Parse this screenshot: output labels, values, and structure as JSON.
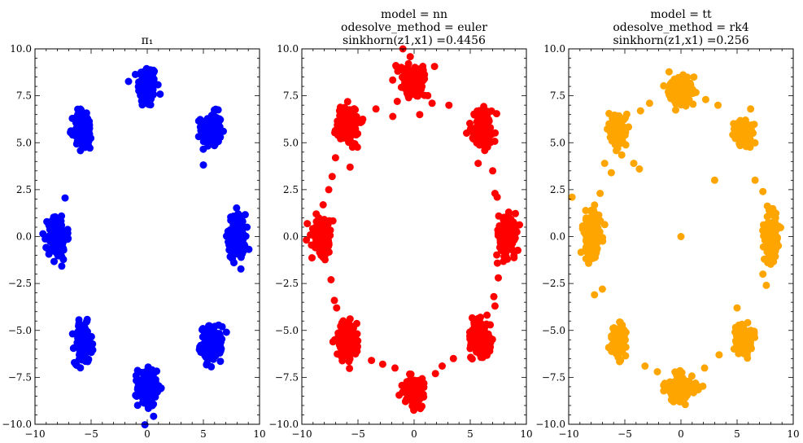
{
  "chart_data": [
    {
      "type": "scatter",
      "title_lines": [
        "π₁"
      ],
      "color": "#0000ff",
      "xlim": [
        -10,
        10
      ],
      "ylim": [
        -10,
        10
      ],
      "xticks": [
        -10,
        -5,
        0,
        5,
        10
      ],
      "yticks": [
        -10,
        -7.5,
        -5,
        -2.5,
        0,
        2.5,
        5,
        7.5,
        10
      ],
      "xtick_labels": [
        "−10",
        "−5",
        "0",
        "5",
        "10"
      ],
      "ytick_labels": [
        "−10.0",
        "−7.5",
        "−5.0",
        "−2.5",
        "0.0",
        "2.5",
        "5.0",
        "7.5",
        "10.0"
      ],
      "clusters": [
        {
          "center": [
            0,
            8
          ],
          "spread": [
            0.55,
            0.75
          ],
          "n": 140
        },
        {
          "center": [
            5.7,
            5.7
          ],
          "spread": [
            0.6,
            0.6
          ],
          "n": 140
        },
        {
          "center": [
            8,
            0
          ],
          "spread": [
            0.5,
            0.8
          ],
          "n": 140
        },
        {
          "center": [
            5.7,
            -5.7
          ],
          "spread": [
            0.6,
            0.6
          ],
          "n": 140
        },
        {
          "center": [
            0,
            -8
          ],
          "spread": [
            0.55,
            0.7
          ],
          "n": 140
        },
        {
          "center": [
            -5.7,
            -5.7
          ],
          "spread": [
            0.5,
            0.7
          ],
          "n": 140
        },
        {
          "center": [
            -8,
            0
          ],
          "spread": [
            0.55,
            0.8
          ],
          "n": 140
        },
        {
          "center": [
            -5.7,
            5.7
          ],
          "spread": [
            0.55,
            0.7
          ],
          "n": 140
        }
      ],
      "outliers": []
    },
    {
      "type": "scatter",
      "title_lines": [
        "model = nn",
        "odesolve_method = euler",
        "sinkhorn(z1,x1) =0.4456"
      ],
      "color": "#ff0000",
      "xlim": [
        -10,
        10
      ],
      "ylim": [
        -10,
        10
      ],
      "xticks": [
        -10,
        -5,
        0,
        5,
        10
      ],
      "yticks": [
        -10,
        -7.5,
        -5,
        -2.5,
        0,
        2.5,
        5,
        7.5,
        10
      ],
      "xtick_labels": [
        "−10",
        "−5",
        "0",
        "5",
        "10"
      ],
      "ytick_labels": [
        "−10.0",
        "−7.5",
        "−5.0",
        "−2.5",
        "0.0",
        "2.5",
        "5.0",
        "7.5",
        "10.0"
      ],
      "clusters": [
        {
          "center": [
            0,
            8.3
          ],
          "spread": [
            0.7,
            0.6
          ],
          "n": 140
        },
        {
          "center": [
            6.1,
            5.8
          ],
          "spread": [
            0.65,
            0.65
          ],
          "n": 140
        },
        {
          "center": [
            8.3,
            0
          ],
          "spread": [
            0.55,
            0.75
          ],
          "n": 140
        },
        {
          "center": [
            6.0,
            -5.5
          ],
          "spread": [
            0.6,
            0.6
          ],
          "n": 140
        },
        {
          "center": [
            0,
            -8.2
          ],
          "spread": [
            0.6,
            0.5
          ],
          "n": 140
        },
        {
          "center": [
            -6.0,
            -5.5
          ],
          "spread": [
            0.6,
            0.65
          ],
          "n": 140
        },
        {
          "center": [
            -8.2,
            0
          ],
          "spread": [
            0.55,
            0.75
          ],
          "n": 140
        },
        {
          "center": [
            -6.0,
            6.0
          ],
          "spread": [
            0.65,
            0.65
          ],
          "n": 140
        }
      ],
      "outliers": [
        [
          -1.5,
          7.2
        ],
        [
          1.6,
          7.1
        ],
        [
          3.1,
          7.0
        ],
        [
          -3.4,
          6.8
        ],
        [
          0.5,
          6.5
        ],
        [
          -1.9,
          6.4
        ],
        [
          7.0,
          3.5
        ],
        [
          7.2,
          2.3
        ],
        [
          7.4,
          2.1
        ],
        [
          -7.3,
          3.2
        ],
        [
          -7.6,
          2.5
        ],
        [
          -7.0,
          4.2
        ],
        [
          7.5,
          -2.2
        ],
        [
          7.1,
          -3.2
        ],
        [
          7.2,
          -3.7
        ],
        [
          -7.4,
          -2.3
        ],
        [
          -7.1,
          -3.4
        ],
        [
          -6.9,
          -3.8
        ],
        [
          -2.8,
          -6.8
        ],
        [
          2.5,
          -6.9
        ],
        [
          1.9,
          -7.3
        ],
        [
          -1.7,
          -7.0
        ],
        [
          3.5,
          -6.5
        ],
        [
          -3.8,
          -6.6
        ],
        [
          -1.0,
          10.0
        ],
        [
          5.7,
          3.9
        ],
        [
          -5.7,
          3.7
        ]
      ]
    },
    {
      "type": "scatter",
      "title_lines": [
        "model = tt",
        "odesolve_method = rk4",
        "sinkhorn(z1,x1) =0.256"
      ],
      "color": "#ffa500",
      "xlim": [
        -10,
        10
      ],
      "ylim": [
        -10,
        10
      ],
      "xticks": [
        -10,
        -5,
        0,
        5,
        10
      ],
      "yticks": [
        -10,
        -7.5,
        -5,
        -2.5,
        0,
        2.5,
        5,
        7.5,
        10
      ],
      "xtick_labels": [
        "−10",
        "−5",
        "0",
        "5",
        "10"
      ],
      "ytick_labels": [
        "−10.0",
        "−7.5",
        "−5.0",
        "−2.5",
        "0.0",
        "2.5",
        "5.0",
        "7.5",
        "10.0"
      ],
      "clusters": [
        {
          "center": [
            0,
            7.8
          ],
          "spread": [
            0.8,
            0.5
          ],
          "n": 140
        },
        {
          "center": [
            5.6,
            5.5
          ],
          "spread": [
            0.55,
            0.45
          ],
          "n": 110
        },
        {
          "center": [
            8.0,
            0
          ],
          "spread": [
            0.5,
            0.9
          ],
          "n": 140
        },
        {
          "center": [
            5.6,
            -5.5
          ],
          "spread": [
            0.5,
            0.55
          ],
          "n": 120
        },
        {
          "center": [
            0,
            -8.0
          ],
          "spread": [
            0.85,
            0.45
          ],
          "n": 140
        },
        {
          "center": [
            -5.6,
            -5.5
          ],
          "spread": [
            0.45,
            0.6
          ],
          "n": 120
        },
        {
          "center": [
            -8.0,
            0
          ],
          "spread": [
            0.5,
            0.9
          ],
          "n": 140
        },
        {
          "center": [
            -5.6,
            5.6
          ],
          "spread": [
            0.45,
            0.55
          ],
          "n": 110
        }
      ],
      "outliers": [
        [
          2.2,
          7.3
        ],
        [
          3.3,
          7.0
        ],
        [
          -2.8,
          7.1
        ],
        [
          -3.6,
          6.7
        ],
        [
          3.0,
          3.0
        ],
        [
          -3.7,
          3.6
        ],
        [
          -4.2,
          3.9
        ],
        [
          -6.2,
          3.4
        ],
        [
          6.6,
          3.0
        ],
        [
          7.3,
          2.4
        ],
        [
          -9.7,
          2.1
        ],
        [
          -7.2,
          2.3
        ],
        [
          -7.0,
          -2.8
        ],
        [
          -7.7,
          -3.1
        ],
        [
          7.6,
          -2.6
        ],
        [
          7.3,
          -2.0
        ],
        [
          -3.2,
          -6.9
        ],
        [
          -2.1,
          -7.2
        ],
        [
          2.1,
          -7.0
        ],
        [
          3.4,
          -6.3
        ],
        [
          0,
          0
        ],
        [
          6.2,
          6.8
        ],
        [
          -6.8,
          3.9
        ],
        [
          5.0,
          -3.8
        ]
      ]
    }
  ]
}
